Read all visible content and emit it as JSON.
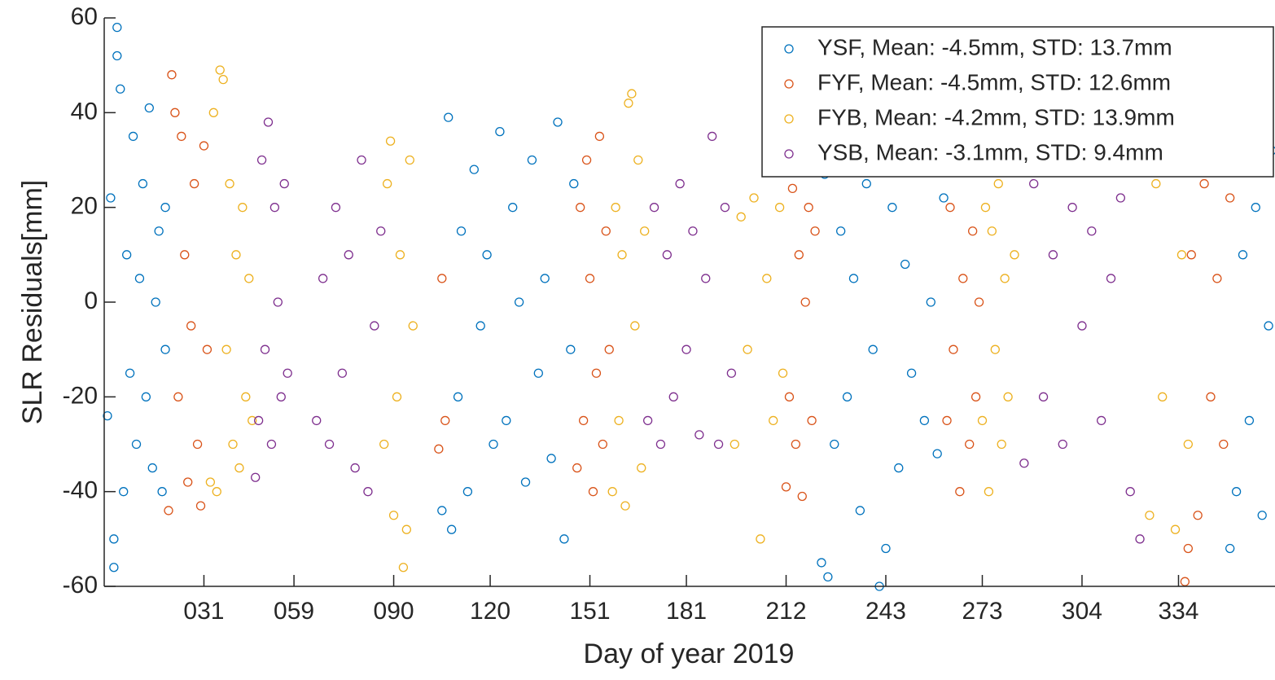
{
  "chart_data": {
    "type": "scatter",
    "xlabel": "Day of year 2019",
    "ylabel": "SLR Residuals[mm]",
    "xlim": [
      0,
      364
    ],
    "ylim": [
      -60,
      60
    ],
    "xticks": [
      {
        "value": 31,
        "label": "031"
      },
      {
        "value": 59,
        "label": "059"
      },
      {
        "value": 90,
        "label": "090"
      },
      120,
      151,
      181,
      212,
      243,
      273,
      304,
      334
    ],
    "yticks": [
      -60,
      -40,
      -20,
      0,
      20,
      40,
      60
    ],
    "legend": "upper right",
    "series": [
      {
        "name": "YSF, Mean: -4.5mm, STD: 13.7mm",
        "color": "#0072bd",
        "x": [
          1,
          2,
          3,
          3,
          4,
          4,
          5,
          6,
          7,
          8,
          9,
          10,
          11,
          12,
          13,
          14,
          15,
          16,
          17,
          18,
          19,
          19,
          105,
          107,
          108,
          110,
          111,
          113,
          115,
          117,
          119,
          121,
          123,
          125,
          127,
          129,
          131,
          133,
          135,
          137,
          139,
          141,
          143,
          145,
          146,
          223,
          224,
          225,
          227,
          229,
          231,
          233,
          235,
          237,
          239,
          241,
          243,
          245,
          247,
          249,
          251,
          253,
          255,
          257,
          259,
          261,
          350,
          351,
          352,
          354,
          356,
          358,
          360,
          362,
          363
        ],
        "values": [
          -24,
          22,
          -56,
          -50,
          58,
          52,
          45,
          -40,
          10,
          -15,
          35,
          -30,
          5,
          25,
          -20,
          41,
          -35,
          0,
          15,
          -40,
          -10,
          20,
          -44,
          39,
          -48,
          -20,
          15,
          -40,
          28,
          -5,
          10,
          -30,
          36,
          -25,
          20,
          0,
          -38,
          30,
          -15,
          5,
          -33,
          38,
          -50,
          -10,
          25,
          -55,
          27,
          -58,
          -30,
          15,
          -20,
          5,
          -44,
          25,
          -10,
          -60,
          -52,
          20,
          -35,
          8,
          -15,
          30,
          -25,
          0,
          -32,
          22,
          -52,
          30,
          -40,
          10,
          -25,
          20,
          -45,
          -5,
          32
        ]
      },
      {
        "name": "FYF, Mean: -4.5mm, STD: 12.6mm",
        "color": "#d95319",
        "x": [
          20,
          21,
          22,
          23,
          24,
          25,
          26,
          27,
          28,
          29,
          30,
          31,
          32,
          104,
          105,
          106,
          147,
          148,
          149,
          150,
          151,
          152,
          153,
          154,
          155,
          156,
          157,
          212,
          213,
          214,
          215,
          216,
          217,
          218,
          219,
          220,
          221,
          262,
          263,
          264,
          265,
          266,
          267,
          268,
          269,
          270,
          271,
          272,
          336,
          337,
          338,
          340,
          342,
          344,
          346,
          348,
          350
        ],
        "values": [
          -44,
          48,
          40,
          -20,
          35,
          10,
          -38,
          -5,
          25,
          -30,
          -43,
          33,
          -10,
          -31,
          5,
          -25,
          -35,
          20,
          -25,
          30,
          5,
          -40,
          -15,
          35,
          -30,
          15,
          -10,
          -39,
          -20,
          24,
          -30,
          10,
          -41,
          0,
          20,
          -25,
          15,
          -25,
          20,
          -10,
          35,
          -40,
          5,
          30,
          -30,
          15,
          -20,
          0,
          -59,
          -52,
          10,
          -45,
          25,
          -20,
          5,
          -30,
          22
        ]
      },
      {
        "name": "FYB, Mean: -4.2mm, STD: 13.9mm",
        "color": "#edb120",
        "x": [
          33,
          34,
          35,
          36,
          37,
          38,
          39,
          40,
          41,
          42,
          43,
          44,
          45,
          46,
          87,
          88,
          89,
          90,
          91,
          92,
          93,
          94,
          95,
          96,
          158,
          159,
          160,
          161,
          162,
          163,
          164,
          165,
          166,
          167,
          168,
          196,
          198,
          200,
          202,
          204,
          206,
          208,
          210,
          211,
          273,
          274,
          275,
          276,
          277,
          278,
          279,
          280,
          281,
          283,
          325,
          327,
          329,
          331,
          333,
          335,
          337
        ],
        "values": [
          -38,
          40,
          -40,
          49,
          47,
          -10,
          25,
          -30,
          10,
          -35,
          20,
          -20,
          5,
          -25,
          -30,
          25,
          34,
          -45,
          -20,
          10,
          -56,
          -48,
          30,
          -5,
          -40,
          20,
          -25,
          10,
          -43,
          42,
          44,
          -5,
          30,
          -35,
          15,
          -30,
          18,
          -10,
          22,
          -50,
          5,
          -25,
          20,
          -15,
          -25,
          20,
          -40,
          15,
          -10,
          25,
          -30,
          5,
          -20,
          10,
          -45,
          25,
          -20,
          35,
          -48,
          10,
          -30
        ]
      },
      {
        "name": "YSB, Mean: -3.1mm, STD: 9.4mm",
        "color": "#7e2f8e",
        "x": [
          47,
          48,
          49,
          50,
          51,
          52,
          53,
          54,
          55,
          56,
          57,
          66,
          68,
          70,
          72,
          74,
          76,
          78,
          80,
          82,
          84,
          86,
          169,
          171,
          173,
          175,
          177,
          179,
          181,
          183,
          185,
          187,
          189,
          191,
          193,
          195,
          286,
          289,
          292,
          295,
          298,
          301,
          304,
          307,
          310,
          313,
          316,
          319,
          322
        ],
        "values": [
          -37,
          -25,
          30,
          -10,
          38,
          -30,
          20,
          0,
          -20,
          25,
          -15,
          -25,
          5,
          -30,
          20,
          -15,
          10,
          -35,
          30,
          -40,
          -5,
          15,
          -25,
          20,
          -30,
          10,
          -20,
          25,
          -10,
          15,
          -28,
          5,
          35,
          -30,
          20,
          -15,
          -34,
          25,
          -20,
          10,
          -30,
          20,
          -5,
          15,
          -25,
          5,
          22,
          -40,
          -50
        ]
      }
    ]
  }
}
